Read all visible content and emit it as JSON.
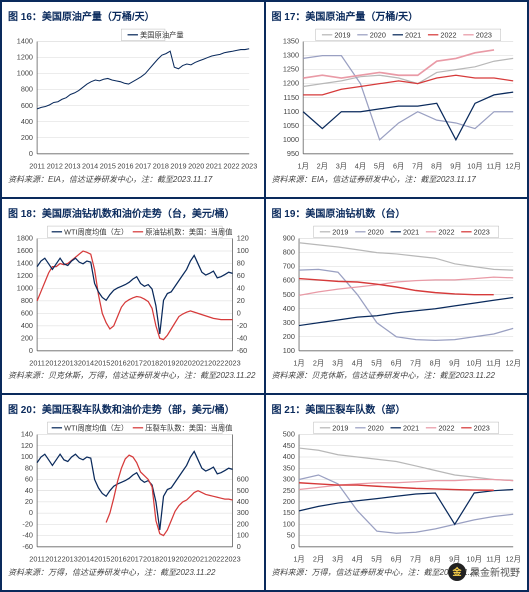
{
  "colors": {
    "primary": "#0a2a5c",
    "accent": "#d63a3a",
    "grid": "#d8d8d8",
    "axis_text": "#444444",
    "year2019": "#b8b8b8",
    "year2020": "#9aa0c2",
    "year2021": "#0a2a5c",
    "year2022": "#d63a3a",
    "year2023": "#e99aa6",
    "rig_series": "#d63a3a",
    "wti_series": "#0a2a5c",
    "frac_series": "#d63a3a"
  },
  "months": [
    "1月",
    "2月",
    "3月",
    "4月",
    "5月",
    "6月",
    "7月",
    "8月",
    "9月",
    "10月",
    "11月",
    "12月"
  ],
  "charts": {
    "c16": {
      "title": "图 16：美国原油产量（万桶/天）",
      "source": "资料来源：EIA，信达证券研发中心，注：截至2023.11.17",
      "legend_label": "美国原油产量",
      "y_ticks": [
        0,
        200,
        400,
        600,
        800,
        1000,
        1200,
        1400
      ],
      "x_ticks": [
        "2011",
        "2012",
        "2013",
        "2014",
        "2015",
        "2016",
        "2017",
        "2018",
        "2019",
        "2020",
        "2021",
        "2022",
        "2023"
      ],
      "series": [
        {
          "name": "prod",
          "color": "#0a2a5c",
          "width": 1,
          "data": [
            560,
            580,
            590,
            610,
            640,
            650,
            680,
            700,
            740,
            760,
            790,
            830,
            870,
            900,
            920,
            910,
            930,
            940,
            920,
            910,
            900,
            880,
            870,
            900,
            930,
            960,
            1000,
            1060,
            1120,
            1180,
            1230,
            1250,
            1280,
            1080,
            1060,
            1100,
            1120,
            1110,
            1140,
            1160,
            1180,
            1200,
            1220,
            1230,
            1240,
            1260,
            1270,
            1280,
            1290,
            1300,
            1300,
            1310
          ]
        }
      ]
    },
    "c17": {
      "title": "图 17：美国原油产量（万桶/天）",
      "source": "资料来源：EIA，信达证券研发中心，注：截至2023.11.17",
      "y_ticks": [
        950,
        1000,
        1050,
        1100,
        1150,
        1200,
        1250,
        1300,
        1350
      ],
      "legend_items": [
        "2019",
        "2020",
        "2021",
        "2022",
        "2023"
      ],
      "series": [
        {
          "name": "2019",
          "color": "#b8b8b8",
          "width": 1.2,
          "data": [
            1190,
            1200,
            1210,
            1225,
            1230,
            1220,
            1200,
            1240,
            1250,
            1260,
            1280,
            1290
          ]
        },
        {
          "name": "2020",
          "color": "#9aa0c2",
          "width": 1.2,
          "data": [
            1290,
            1300,
            1300,
            1200,
            1000,
            1060,
            1100,
            1070,
            1060,
            1040,
            1100,
            1100
          ]
        },
        {
          "name": "2021",
          "color": "#0a2a5c",
          "width": 1.2,
          "data": [
            1100,
            1040,
            1100,
            1100,
            1110,
            1120,
            1120,
            1130,
            1000,
            1130,
            1160,
            1170
          ]
        },
        {
          "name": "2022",
          "color": "#d63a3a",
          "width": 1.2,
          "data": [
            1160,
            1160,
            1180,
            1190,
            1200,
            1210,
            1200,
            1220,
            1230,
            1220,
            1220,
            1210
          ]
        },
        {
          "name": "2023",
          "color": "#e99aa6",
          "width": 1.6,
          "data": [
            1220,
            1230,
            1220,
            1230,
            1240,
            1230,
            1230,
            1280,
            1290,
            1310,
            1320,
            null
          ]
        }
      ]
    },
    "c18": {
      "title": "图 18：美国原油钻机数和油价走势（台，美元/桶）",
      "source": "资料来源：贝克休斯，万得，信达证券研发中心，注：截至2023.11.22",
      "left_y_ticks": [
        0,
        200,
        400,
        600,
        800,
        1000,
        1200,
        1400,
        1600,
        1800
      ],
      "right_y_ticks": [
        -60,
        -40,
        -20,
        0,
        20,
        40,
        60,
        80,
        100,
        120,
        140
      ],
      "x_ticks": [
        "2011",
        "2012",
        "2013",
        "2014",
        "2015",
        "2016",
        "2017",
        "2018",
        "2019",
        "2020",
        "2021",
        "2022",
        "2023"
      ],
      "legend_items": [
        "WTI周度均值（左）",
        "原油钻机数：美国：当周值"
      ],
      "series_left": [
        {
          "name": "rigs",
          "color": "#d63a3a",
          "width": 1.2,
          "data": [
            800,
            950,
            1100,
            1250,
            1350,
            1350,
            1400,
            1380,
            1400,
            1450,
            1500,
            1550,
            1600,
            1580,
            1550,
            1300,
            900,
            600,
            450,
            350,
            400,
            550,
            700,
            780,
            820,
            850,
            870,
            860,
            830,
            790,
            680,
            400,
            200,
            180,
            250,
            350,
            450,
            550,
            590,
            620,
            640,
            620,
            600,
            580,
            560,
            540,
            520,
            510,
            500,
            500,
            500,
            500
          ]
        }
      ],
      "series_right": [
        {
          "name": "wti",
          "color": "#0a2a5c",
          "width": 1.2,
          "data": [
            90,
            100,
            105,
            95,
            85,
            95,
            105,
            95,
            92,
            100,
            105,
            98,
            95,
            100,
            98,
            60,
            45,
            35,
            30,
            40,
            48,
            52,
            55,
            58,
            62,
            68,
            72,
            60,
            55,
            58,
            50,
            20,
            -30,
            30,
            42,
            45,
            55,
            65,
            75,
            85,
            100,
            110,
            95,
            80,
            75,
            78,
            82,
            70,
            72,
            76,
            80,
            78
          ]
        }
      ]
    },
    "c19": {
      "title": "图 19：美国原油钻机数（台）",
      "source": "资料来源：贝克休斯，信达证券研发中心，注：截至2023.11.22",
      "y_ticks": [
        100,
        200,
        300,
        400,
        500,
        600,
        700,
        800,
        900
      ],
      "legend_items": [
        "2019",
        "2020",
        "2021",
        "2022",
        "2023"
      ],
      "series": [
        {
          "name": "2019",
          "color": "#b8b8b8",
          "width": 1.2,
          "data": [
            870,
            855,
            840,
            820,
            800,
            790,
            775,
            760,
            720,
            700,
            680,
            675
          ]
        },
        {
          "name": "2020",
          "color": "#9aa0c2",
          "width": 1.2,
          "data": [
            675,
            680,
            660,
            500,
            300,
            200,
            180,
            175,
            180,
            200,
            220,
            260
          ]
        },
        {
          "name": "2021",
          "color": "#0a2a5c",
          "width": 1.2,
          "data": [
            280,
            300,
            320,
            340,
            350,
            370,
            385,
            400,
            420,
            440,
            460,
            480
          ]
        },
        {
          "name": "2022",
          "color": "#e99aa6",
          "width": 1.2,
          "data": [
            495,
            520,
            540,
            555,
            570,
            590,
            600,
            605,
            605,
            615,
            625,
            620
          ]
        },
        {
          "name": "2023",
          "color": "#d63a3a",
          "width": 1.4,
          "data": [
            615,
            605,
            595,
            590,
            575,
            555,
            530,
            515,
            505,
            500,
            500,
            null
          ]
        }
      ]
    },
    "c20": {
      "title": "图 20：美国压裂车队数和油价走势（部，美元/桶）",
      "source": "资料来源：万得，信达证券研发中心，注：截至2023.11.22",
      "left_y_ticks": [
        -60,
        -40,
        -20,
        0,
        20,
        40,
        60,
        80,
        100,
        120,
        140
      ],
      "right_y_ticks": [
        0,
        100,
        200,
        300,
        400,
        500,
        600
      ],
      "x_ticks": [
        "2011",
        "2012",
        "2013",
        "2014",
        "2015",
        "2016",
        "2017",
        "2018",
        "2019",
        "2020",
        "2021",
        "2022",
        "2023"
      ],
      "legend_items": [
        "WTI周度均值（左）",
        "压裂车队数：美国：当周值"
      ],
      "series_left": [
        {
          "name": "wti",
          "color": "#0a2a5c",
          "width": 1.2,
          "data": [
            90,
            100,
            105,
            95,
            85,
            95,
            105,
            95,
            92,
            100,
            105,
            98,
            95,
            100,
            98,
            60,
            45,
            35,
            30,
            40,
            48,
            52,
            55,
            58,
            62,
            68,
            72,
            60,
            55,
            58,
            50,
            20,
            -30,
            30,
            42,
            45,
            55,
            65,
            75,
            85,
            100,
            110,
            95,
            80,
            75,
            78,
            82,
            70,
            72,
            76,
            80,
            78
          ]
        }
      ],
      "series_right": [
        {
          "name": "frac",
          "color": "#d63a3a",
          "width": 1.2,
          "data": [
            null,
            null,
            null,
            null,
            null,
            null,
            null,
            null,
            null,
            null,
            null,
            null,
            null,
            null,
            null,
            null,
            null,
            null,
            130,
            180,
            260,
            350,
            420,
            470,
            490,
            480,
            450,
            400,
            380,
            360,
            320,
            140,
            70,
            60,
            90,
            140,
            190,
            220,
            240,
            250,
            270,
            290,
            300,
            290,
            280,
            275,
            270,
            265,
            260,
            255,
            255,
            250
          ]
        }
      ]
    },
    "c21": {
      "title": "图 21：美国压裂车队数（部）",
      "source": "资料来源：万得，信达证券研发中心，注：截至2023.11.22",
      "y_ticks": [
        0,
        50,
        100,
        150,
        200,
        250,
        300,
        350,
        400,
        450,
        500
      ],
      "legend_items": [
        "2019",
        "2020",
        "2021",
        "2022",
        "2023"
      ],
      "series": [
        {
          "name": "2019",
          "color": "#b8b8b8",
          "width": 1.2,
          "data": [
            440,
            430,
            410,
            400,
            390,
            380,
            360,
            340,
            320,
            310,
            300,
            295
          ]
        },
        {
          "name": "2020",
          "color": "#9aa0c2",
          "width": 1.2,
          "data": [
            300,
            320,
            280,
            160,
            70,
            60,
            65,
            80,
            100,
            120,
            135,
            145
          ]
        },
        {
          "name": "2021",
          "color": "#0a2a5c",
          "width": 1.2,
          "data": [
            160,
            180,
            195,
            205,
            215,
            225,
            235,
            240,
            100,
            240,
            250,
            255
          ]
        },
        {
          "name": "2022",
          "color": "#e99aa6",
          "width": 1.2,
          "data": [
            255,
            265,
            275,
            280,
            285,
            285,
            290,
            295,
            295,
            300,
            300,
            295
          ]
        },
        {
          "name": "2023",
          "color": "#d63a3a",
          "width": 1.4,
          "data": [
            285,
            280,
            275,
            275,
            270,
            265,
            260,
            258,
            255,
            253,
            252,
            null
          ]
        }
      ]
    }
  },
  "watermark": {
    "label": "黑金新视野"
  }
}
